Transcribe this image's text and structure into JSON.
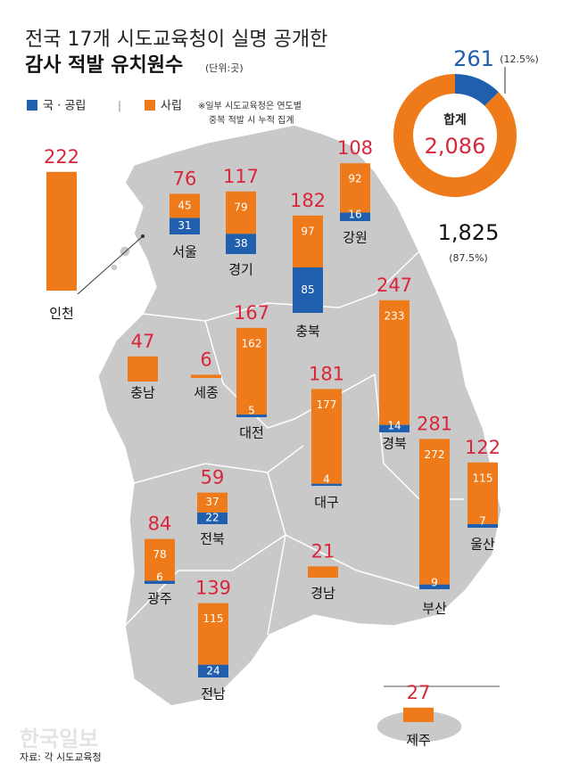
{
  "chart_data": [
    {
      "type": "bar",
      "stacked": true,
      "title": "전국 17개 시도교육청이 실명 공개한",
      "subtitle": "감사 적발 유치원수",
      "unit": "(단위:곳)",
      "note": [
        "※일부 시도교육청은 연도별",
        "중복 적발 시 누적 집계"
      ],
      "source": "자료: 각 시도교육청",
      "watermark": "한국일보",
      "categories": [
        "인천",
        "서울",
        "경기",
        "충북",
        "강원",
        "충남",
        "세종",
        "대전",
        "경북",
        "대구",
        "전북",
        "광주",
        "전남",
        "경남",
        "부산",
        "울산",
        "제주"
      ],
      "series": [
        {
          "name": "국 · 공립",
          "color": "#1f5fad",
          "values": [
            0,
            31,
            38,
            85,
            16,
            0,
            0,
            5,
            14,
            4,
            22,
            6,
            24,
            0,
            9,
            7,
            0
          ]
        },
        {
          "name": "사립",
          "color": "#ee7a1a",
          "values": [
            222,
            45,
            79,
            97,
            92,
            47,
            6,
            162,
            233,
            177,
            37,
            78,
            115,
            21,
            272,
            115,
            27
          ]
        }
      ],
      "totals": [
        222,
        76,
        117,
        182,
        108,
        47,
        6,
        167,
        247,
        181,
        59,
        84,
        139,
        21,
        281,
        122,
        27
      ],
      "total_color": "#d9263a"
    },
    {
      "type": "pie",
      "donut": true,
      "center_label": "합계",
      "total": {
        "value": 2086,
        "label": "2,086"
      },
      "categories": [
        "국 · 공립",
        "사립"
      ],
      "values": [
        261,
        1825
      ],
      "value_labels": [
        "261",
        "1,825"
      ],
      "percent_labels": [
        "(12.5%)",
        "(87.5%)"
      ],
      "colors": [
        "#1f5fad",
        "#ee7a1a"
      ]
    }
  ]
}
